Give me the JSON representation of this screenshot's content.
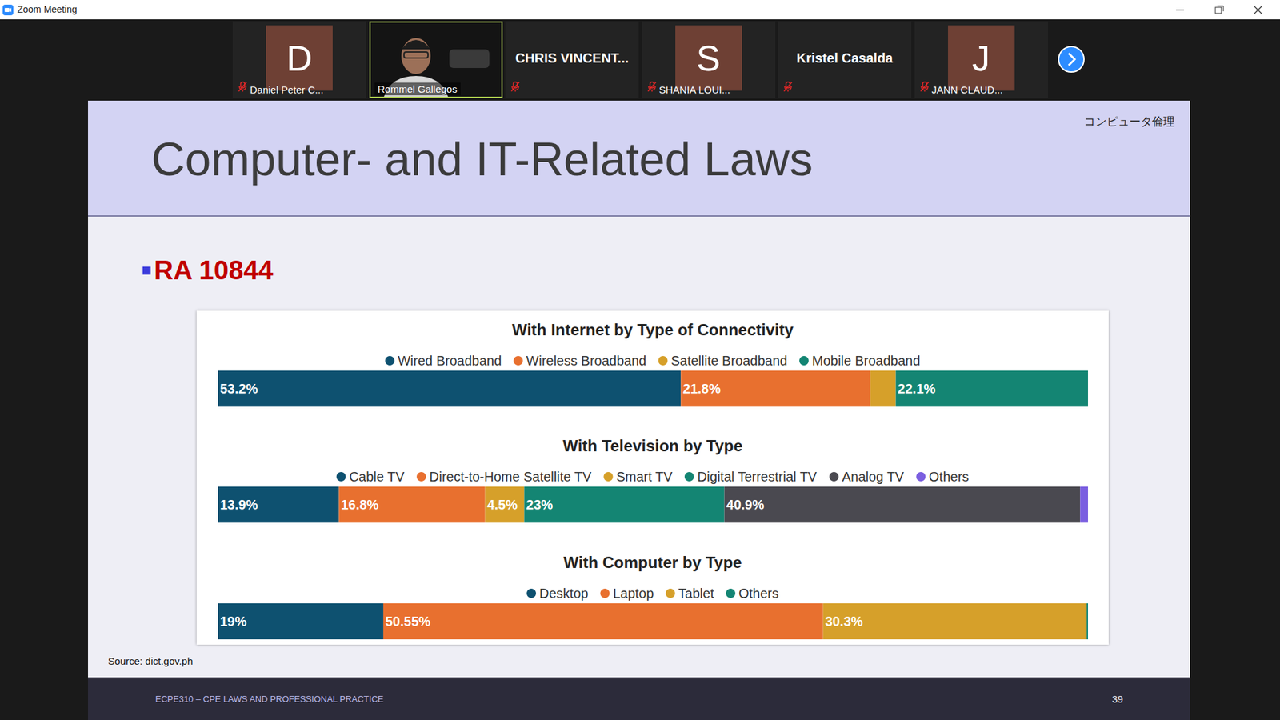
{
  "window": {
    "title": "Zoom Meeting"
  },
  "participants": [
    {
      "initial": "D",
      "name": "Daniel Peter C...",
      "muted": true,
      "video": false
    },
    {
      "name": "Rommel Gallegos",
      "muted": false,
      "video": true
    },
    {
      "name": "CHRIS  VINCENT...",
      "muted": true,
      "video": false
    },
    {
      "initial": "S",
      "name": "SHANIA LOUI...",
      "muted": true,
      "video": false
    },
    {
      "name": "Kristel Casalda",
      "muted": true,
      "video": false
    },
    {
      "initial": "J",
      "name": "JANN CLAUD...",
      "muted": true,
      "video": false
    }
  ],
  "slide": {
    "title": "Computer- and IT-Related Laws",
    "corner_text": "コンピュータ倫理",
    "bullet": "RA 10844",
    "source": "Source: dict.gov.ph",
    "footer": "ECPE310 – CPE LAWS AND PROFESSIONAL PRACTICE",
    "page": 39
  },
  "chart_data": [
    {
      "type": "bar",
      "title": "With Internet by Type of Connectivity",
      "orientation": "horizontal",
      "stacked": true,
      "data_labels": true,
      "tick_labels": false,
      "grid": false,
      "legend": "top",
      "categories": [
        null
      ],
      "xlim": [
        0,
        100
      ],
      "series": [
        {
          "name": "Wired Broadband",
          "color": "#0e5170",
          "values": [
            53.2
          ],
          "value_labels": [
            "53.2%"
          ]
        },
        {
          "name": "Wireless Broadband",
          "color": "#e8702f",
          "values": [
            21.8
          ],
          "value_labels": [
            "21.8%"
          ]
        },
        {
          "name": "Satellite Broadband",
          "color": "#d6a02a",
          "values": [
            2.9
          ],
          "value_labels": [
            null
          ]
        },
        {
          "name": "Mobile Broadband",
          "color": "#148573",
          "values": [
            22.1
          ],
          "value_labels": [
            "22.1%"
          ]
        }
      ]
    },
    {
      "type": "bar",
      "title": "With Television by Type",
      "orientation": "horizontal",
      "stacked": true,
      "data_labels": true,
      "tick_labels": false,
      "grid": false,
      "legend": "top",
      "categories": [
        null
      ],
      "xlim": [
        0,
        100
      ],
      "series": [
        {
          "name": "Cable TV",
          "color": "#0e5170",
          "values": [
            13.9
          ],
          "value_labels": [
            "13.9%"
          ]
        },
        {
          "name": "Direct-to-Home Satellite TV",
          "color": "#e8702f",
          "values": [
            16.8
          ],
          "value_labels": [
            "16.8%"
          ]
        },
        {
          "name": "Smart TV",
          "color": "#d6a02a",
          "values": [
            4.5
          ],
          "value_labels": [
            "4.5%"
          ]
        },
        {
          "name": "Digital Terrestrial TV",
          "color": "#148573",
          "values": [
            23
          ],
          "value_labels": [
            "23%"
          ]
        },
        {
          "name": "Analog TV",
          "color": "#4a4950",
          "values": [
            40.9
          ],
          "value_labels": [
            "40.9%"
          ]
        },
        {
          "name": "Others",
          "color": "#7b5fe0",
          "values": [
            0.9
          ],
          "value_labels": [
            null
          ]
        }
      ]
    },
    {
      "type": "bar",
      "title": "With Computer by Type",
      "orientation": "horizontal",
      "stacked": true,
      "data_labels": true,
      "tick_labels": false,
      "grid": false,
      "legend": "top",
      "categories": [
        null
      ],
      "xlim": [
        0,
        100
      ],
      "series": [
        {
          "name": "Desktop",
          "color": "#0e5170",
          "values": [
            19
          ],
          "value_labels": [
            "19%"
          ]
        },
        {
          "name": "Laptop",
          "color": "#e8702f",
          "values": [
            50.55
          ],
          "value_labels": [
            "50.55%"
          ]
        },
        {
          "name": "Tablet",
          "color": "#d6a02a",
          "values": [
            30.3
          ],
          "value_labels": [
            "30.3%"
          ]
        },
        {
          "name": "Others",
          "color": "#148573",
          "values": [
            0.15
          ],
          "value_labels": [
            null
          ]
        }
      ]
    }
  ]
}
